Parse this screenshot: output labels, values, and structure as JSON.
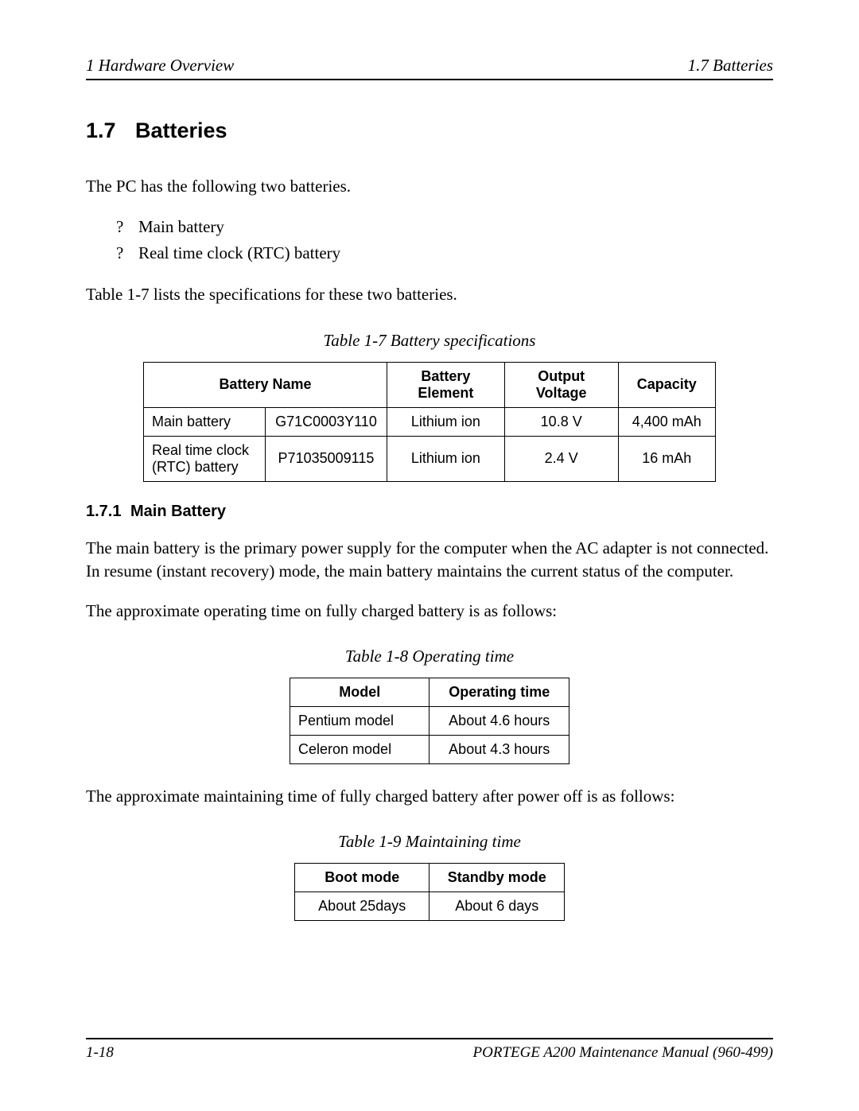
{
  "header": {
    "left": "1  Hardware Overview",
    "right": "1.7  Batteries"
  },
  "section": {
    "number": "1.7",
    "title": "Batteries"
  },
  "intro_text": "The PC has the following two batteries.",
  "bullets": {
    "marker": "?",
    "items": [
      "Main battery",
      "Real time clock (RTC) battery"
    ]
  },
  "after_list_text": "Table 1-7 lists the specifications for these two batteries.",
  "table1": {
    "caption": "Table 1-7  Battery specifications",
    "headers": {
      "battery_name": "Battery Name",
      "battery_element": "Battery Element",
      "output_voltage": "Output Voltage",
      "capacity": "Capacity"
    },
    "rows": [
      {
        "name": "Main battery",
        "part": "G71C0003Y110",
        "element": "Lithium ion",
        "voltage": "10.8 V",
        "capacity": "4,400 mAh"
      },
      {
        "name": "Real time clock (RTC) battery",
        "part": "P71035009115",
        "element": "Lithium ion",
        "voltage": "2.4 V",
        "capacity": "16 mAh"
      }
    ]
  },
  "subsection": {
    "number": "1.7.1",
    "title": "Main Battery"
  },
  "main_battery_p1": "The main battery is the primary power supply for the computer when the AC adapter is not connected. In resume (instant recovery) mode, the main battery maintains the current status of the computer.",
  "main_battery_p2": "The approximate operating time on fully charged battery is as follows:",
  "table2": {
    "caption": "Table 1-8  Operating time",
    "headers": {
      "model": "Model",
      "operating_time": "Operating time"
    },
    "rows": [
      {
        "model": "Pentium model",
        "time": "About 4.6 hours"
      },
      {
        "model": "Celeron model",
        "time": "About 4.3 hours"
      }
    ]
  },
  "maintaining_intro": "The approximate maintaining time of fully charged battery after power off is as follows:",
  "table3": {
    "caption": "Table 1-9  Maintaining time",
    "headers": {
      "boot_mode": "Boot mode",
      "standby_mode": "Standby mode"
    },
    "row": {
      "boot": "About 25days",
      "standby": "About 6 days"
    }
  },
  "footer": {
    "left": "1-18",
    "right": "PORTEGE A200 Maintenance Manual (960-499)"
  }
}
